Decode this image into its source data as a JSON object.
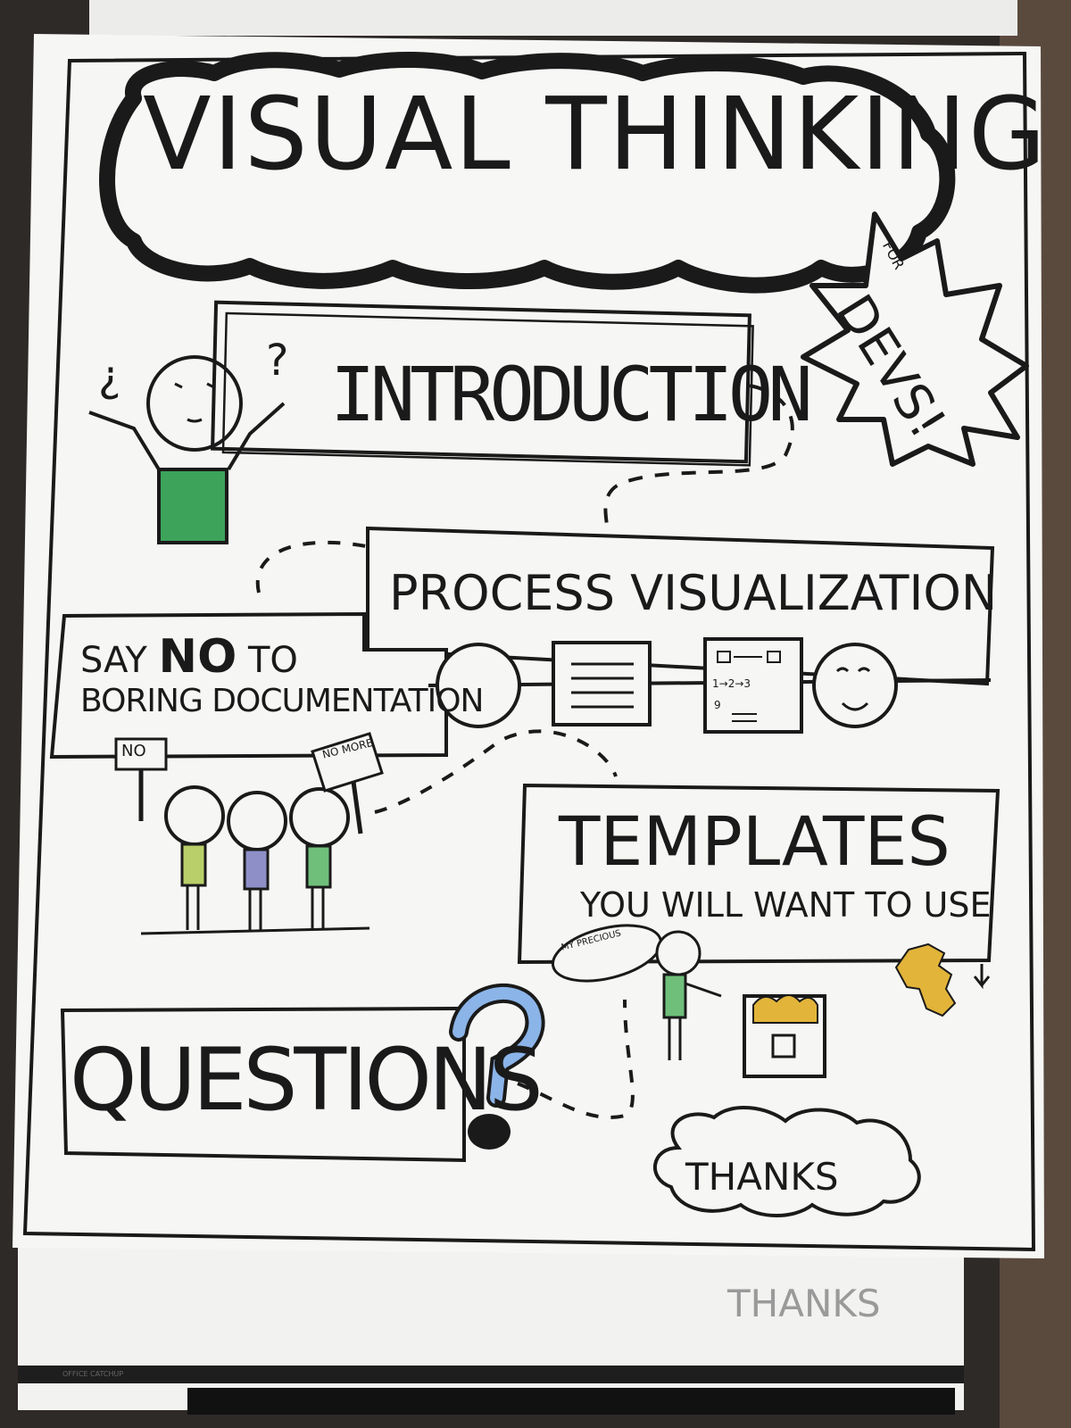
{
  "poster": {
    "title": "VISUAL THINKING",
    "badge_small": "FOR",
    "badge_big": "DEVS!",
    "sections": {
      "intro": "INTRODUCTION",
      "process": "PROCESS VISUALIZATION",
      "say_no_line1_a": "SAY",
      "say_no_line1_b": "NO",
      "say_no_line1_c": "TO",
      "say_no_line2": "BORING DOCUMENTATION",
      "templates": "TEMPLATES",
      "templates_sub": "YOU WILL WANT TO USE",
      "questions": "QUESTIONS",
      "thanks": "THANKS"
    },
    "signs": {
      "no": "NO",
      "no_more": "NO MORE",
      "my_precious": "MY PRECIOUS"
    },
    "flow_card": {
      "line1": "1→2→3",
      "line2": "9"
    },
    "marks": {
      "question_small": "?",
      "question_inverted": "¿"
    },
    "board_ghost_text": "THANKS",
    "board_brand": "OFFICE CATCHUP",
    "colors": {
      "shirt_green": "#3da35a",
      "question_blue": "#8bb4e8",
      "hand_yellow": "#e2b43a",
      "ink": "#1a1a1a"
    }
  }
}
